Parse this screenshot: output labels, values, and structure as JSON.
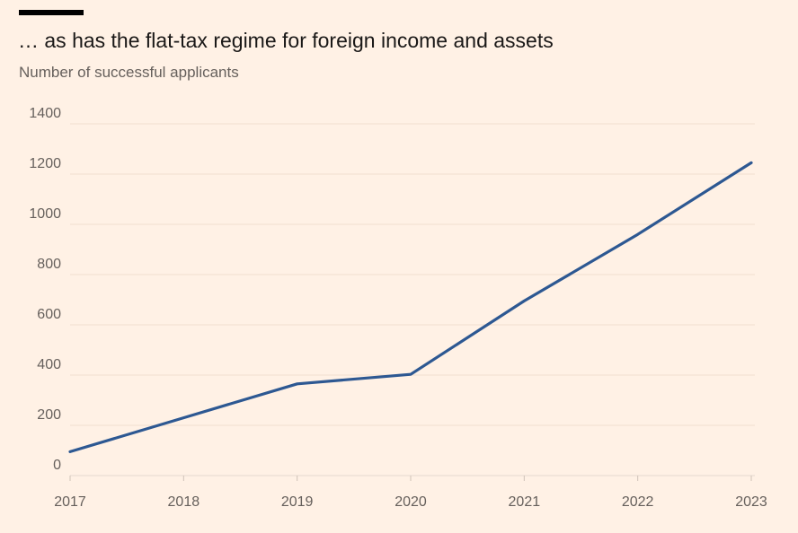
{
  "title": "… as has the flat-tax regime for foreign income and assets",
  "subtitle": "Number of successful applicants",
  "colors": {
    "background": "#fff1e5",
    "line": "#2d5892",
    "grid": "#f2dfce",
    "text": "#66605c"
  },
  "chart_data": {
    "type": "line",
    "title": "… as has the flat-tax regime for foreign income and assets",
    "subtitle": "Number of successful applicants",
    "xlabel": "",
    "ylabel": "",
    "x": [
      2017,
      2018,
      2019,
      2020,
      2021,
      2022,
      2023
    ],
    "series": [
      {
        "values": [
          95,
          230,
          365,
          403,
          695,
          960,
          1245
        ]
      }
    ],
    "ylim": [
      0,
      1400
    ],
    "yticks": [
      0,
      200,
      400,
      600,
      800,
      1000,
      1200,
      1400
    ],
    "xticks": [
      "2017",
      "2018",
      "2019",
      "2020",
      "2021",
      "2022",
      "2023"
    ],
    "grid": true,
    "legend": "none"
  }
}
